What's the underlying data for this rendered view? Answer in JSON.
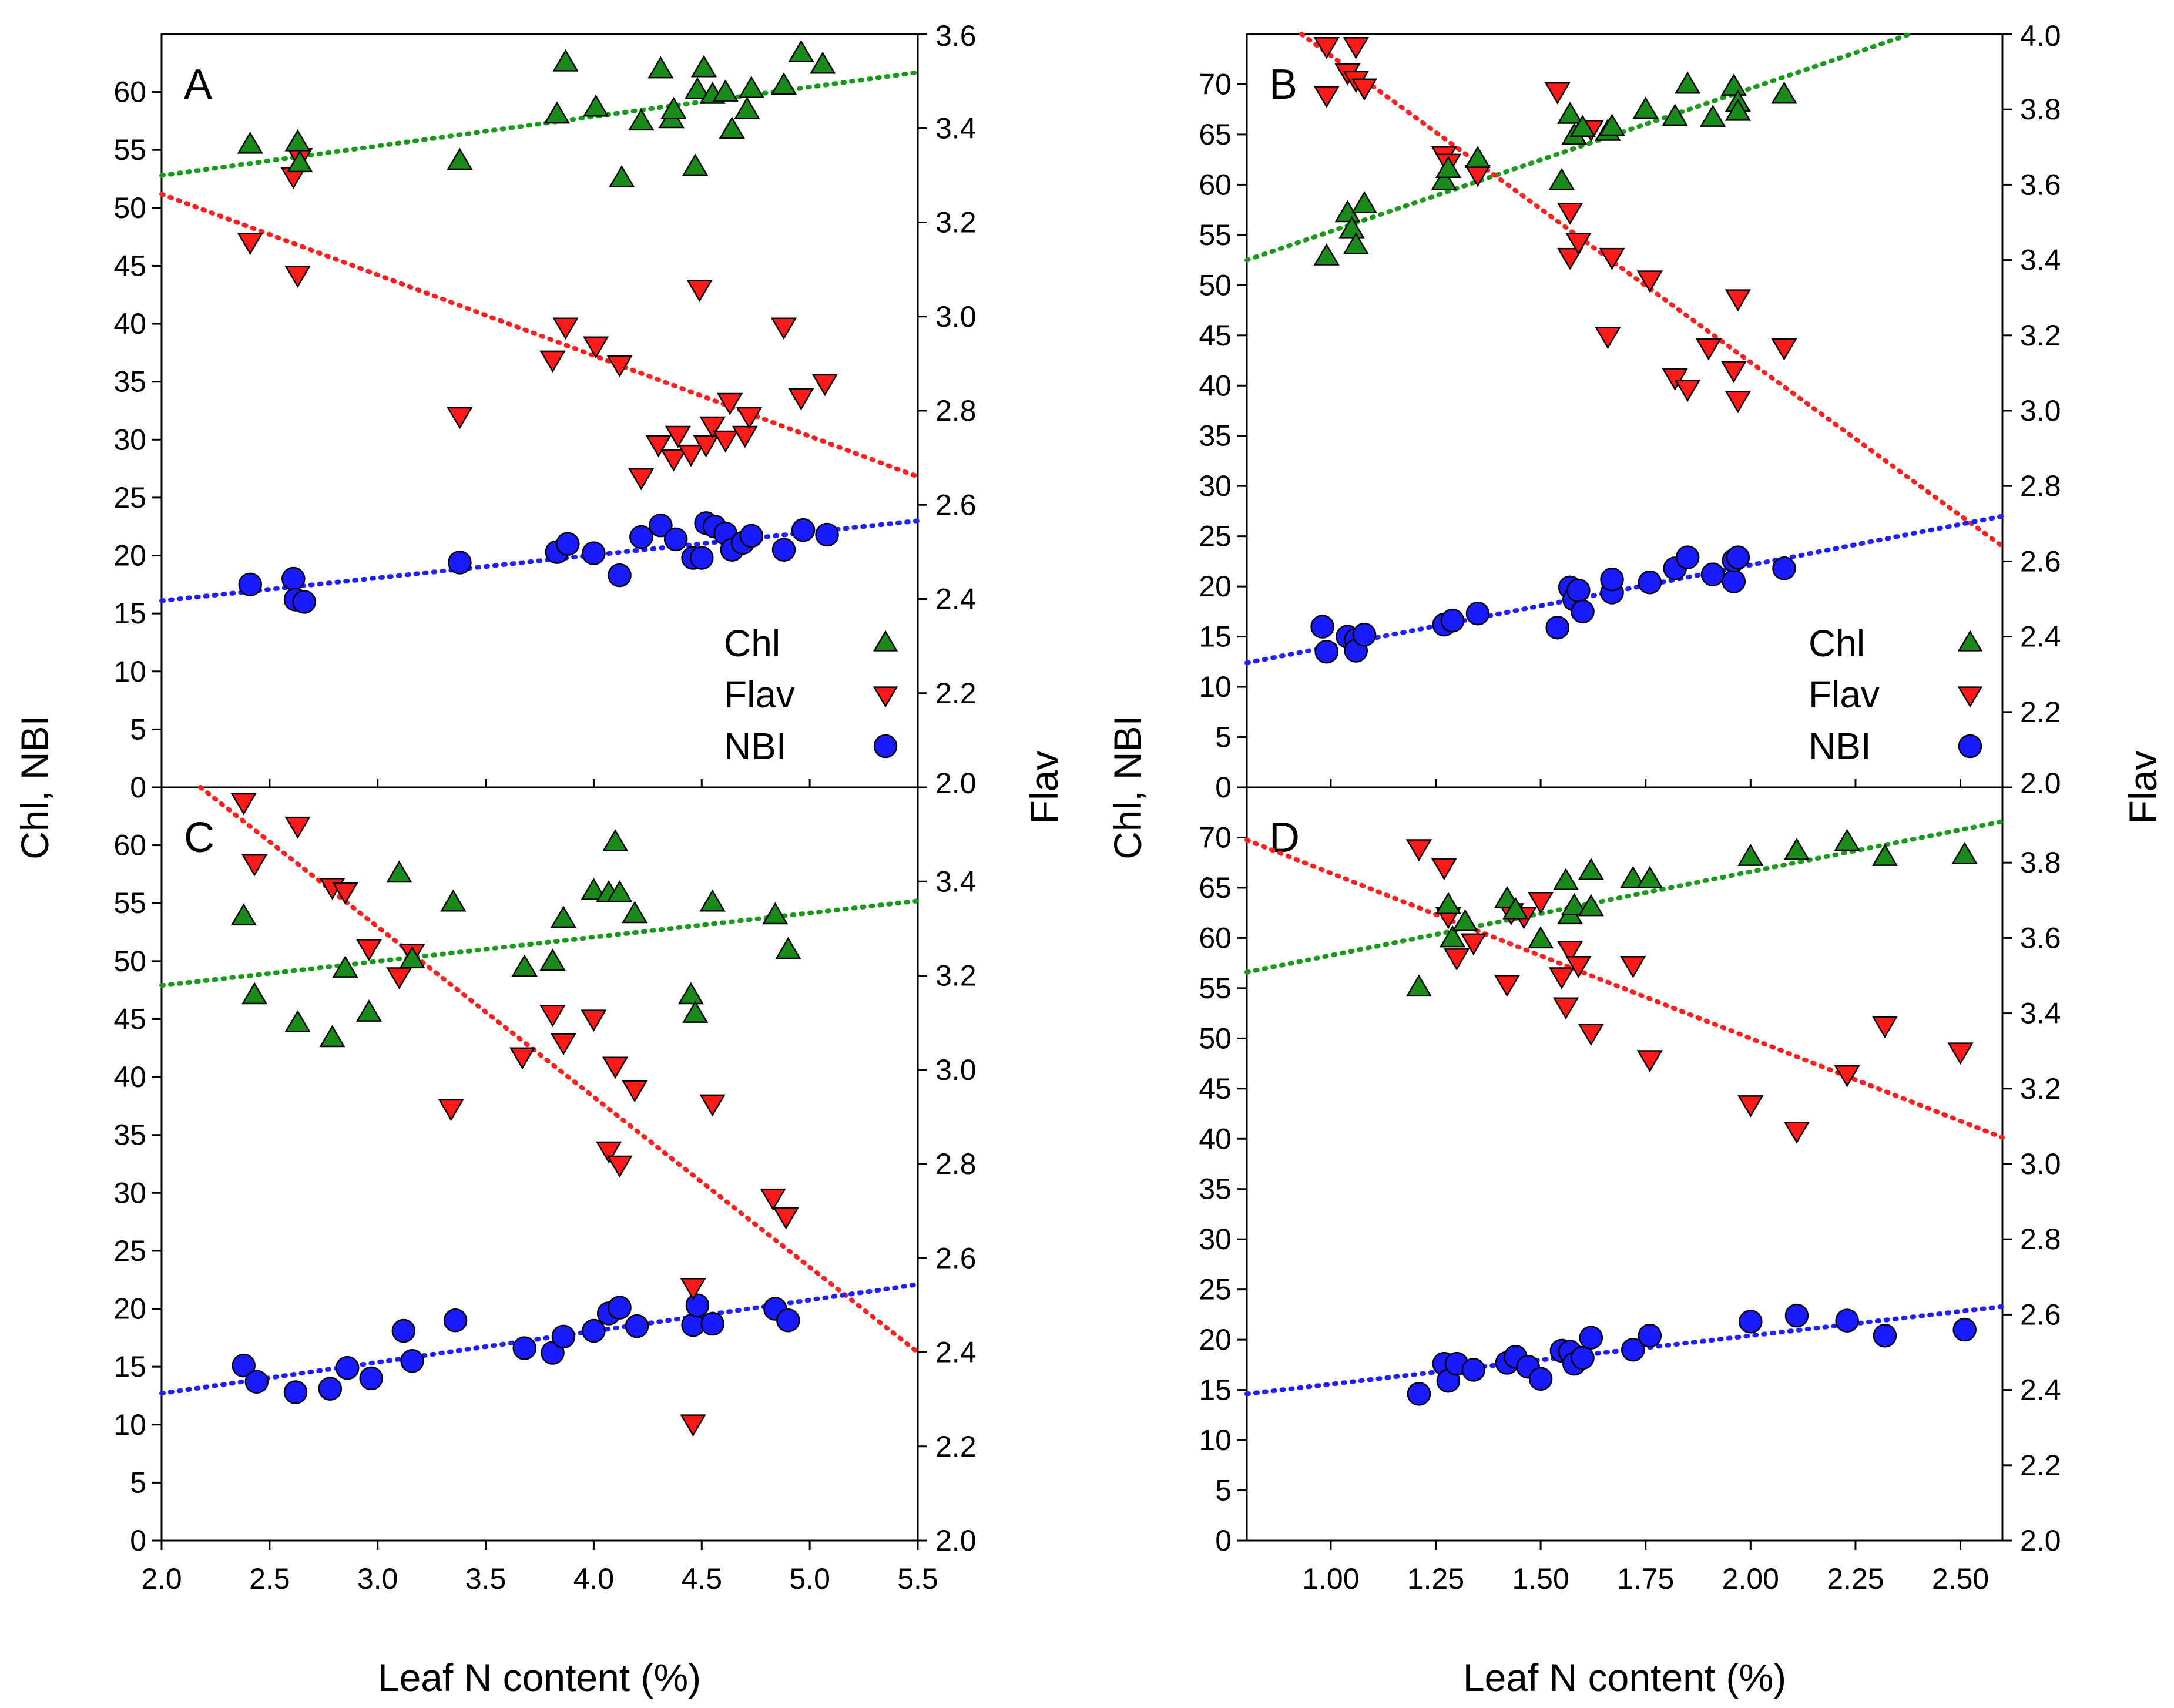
{
  "figure": {
    "shared_xlabel": "Leaf N content (%)",
    "left_ylabel": "Chl, NBI",
    "right_ylabel": "Flav",
    "legend": [
      {
        "label": "Chl",
        "marker": "triangle-up",
        "color": "#1a8a1a"
      },
      {
        "label": "Flav",
        "marker": "triangle-down",
        "color": "#ff1a1a"
      },
      {
        "label": "NBI",
        "marker": "circle",
        "color": "#1a1aff"
      }
    ],
    "colors": {
      "chl": "#1a8a1a",
      "flav": "#ff1a1a",
      "nbi": "#1a1aff",
      "chl_fit": "#1a9a1a",
      "flav_fit": "#ff2020",
      "nbi_fit": "#2020ff"
    }
  },
  "chart_data": [
    {
      "panel": "A",
      "type": "scatter",
      "xlim": [
        2.0,
        5.5
      ],
      "ylim": [
        0,
        65
      ],
      "y2lim": [
        2.0,
        3.6
      ],
      "xticks": [
        "2.0",
        "2.5",
        "3.0",
        "3.5",
        "4.0",
        "4.5",
        "5.0",
        "5.5"
      ],
      "yticks": [
        "0",
        "5",
        "10",
        "15",
        "20",
        "25",
        "30",
        "35",
        "40",
        "45",
        "50",
        "55",
        "60"
      ],
      "y2ticks": [
        "2.0",
        "2.2",
        "2.4",
        "2.6",
        "2.8",
        "3.0",
        "3.2",
        "3.4",
        "3.6"
      ],
      "show_xticks": false,
      "show_y2_max_label": true,
      "legend": true,
      "chl": [
        [
          2.41,
          55.4
        ],
        [
          2.63,
          55.6
        ],
        [
          2.64,
          53.8
        ],
        [
          3.38,
          54.0
        ],
        [
          3.83,
          58.0
        ],
        [
          3.87,
          62.5
        ],
        [
          4.01,
          58.6
        ],
        [
          4.13,
          52.5
        ],
        [
          4.22,
          57.4
        ],
        [
          4.31,
          61.9
        ],
        [
          4.36,
          57.6
        ],
        [
          4.37,
          58.4
        ],
        [
          4.47,
          53.5
        ],
        [
          4.48,
          60.1
        ],
        [
          4.51,
          62.0
        ],
        [
          4.55,
          59.7
        ],
        [
          4.61,
          59.9
        ],
        [
          4.64,
          56.7
        ],
        [
          4.71,
          58.4
        ],
        [
          4.73,
          60.2
        ],
        [
          4.88,
          60.5
        ],
        [
          4.96,
          63.3
        ],
        [
          5.06,
          62.3
        ]
      ],
      "flav": [
        [
          2.41,
          3.16
        ],
        [
          2.61,
          3.3
        ],
        [
          2.63,
          3.09
        ],
        [
          2.64,
          3.34
        ],
        [
          3.38,
          2.79
        ],
        [
          3.81,
          2.91
        ],
        [
          3.87,
          2.98
        ],
        [
          4.01,
          2.94
        ],
        [
          4.12,
          2.9
        ],
        [
          4.22,
          2.66
        ],
        [
          4.3,
          2.73
        ],
        [
          4.37,
          2.7
        ],
        [
          4.39,
          2.75
        ],
        [
          4.45,
          2.71
        ],
        [
          4.49,
          3.06
        ],
        [
          4.52,
          2.73
        ],
        [
          4.55,
          2.77
        ],
        [
          4.61,
          2.74
        ],
        [
          4.63,
          2.82
        ],
        [
          4.7,
          2.75
        ],
        [
          4.72,
          2.79
        ],
        [
          4.88,
          2.98
        ],
        [
          4.96,
          2.83
        ],
        [
          5.07,
          2.86
        ]
      ],
      "nbi": [
        [
          2.41,
          17.5
        ],
        [
          2.61,
          18.0
        ],
        [
          2.62,
          16.2
        ],
        [
          2.66,
          16.0
        ],
        [
          3.38,
          19.4
        ],
        [
          3.83,
          20.3
        ],
        [
          3.88,
          21.0
        ],
        [
          4.0,
          20.2
        ],
        [
          4.12,
          18.3
        ],
        [
          4.22,
          21.6
        ],
        [
          4.31,
          22.6
        ],
        [
          4.38,
          21.4
        ],
        [
          4.46,
          19.8
        ],
        [
          4.5,
          19.8
        ],
        [
          4.52,
          22.8
        ],
        [
          4.56,
          22.5
        ],
        [
          4.61,
          21.9
        ],
        [
          4.64,
          20.5
        ],
        [
          4.69,
          21.1
        ],
        [
          4.73,
          21.7
        ],
        [
          4.88,
          20.5
        ],
        [
          4.97,
          22.2
        ],
        [
          5.08,
          21.8
        ]
      ],
      "fits": {
        "chl": [
          [
            2.0,
            52.8
          ],
          [
            5.5,
            61.7
          ]
        ],
        "flav": [
          [
            2.0,
            3.26
          ],
          [
            5.5,
            2.66
          ]
        ],
        "nbi": [
          [
            2.0,
            16.1
          ],
          [
            5.5,
            23.0
          ]
        ]
      }
    },
    {
      "panel": "B",
      "type": "scatter",
      "xlim": [
        0.8,
        2.6
      ],
      "ylim": [
        0,
        75
      ],
      "y2lim": [
        2.0,
        4.0
      ],
      "xticks": [
        "1.00",
        "1.25",
        "1.50",
        "1.75",
        "2.00",
        "2.25",
        "2.50"
      ],
      "yticks": [
        "0",
        "5",
        "10",
        "15",
        "20",
        "25",
        "30",
        "35",
        "40",
        "45",
        "50",
        "55",
        "60",
        "65",
        "70"
      ],
      "y2ticks": [
        "2.0",
        "2.2",
        "2.4",
        "2.6",
        "2.8",
        "3.0",
        "3.2",
        "3.4",
        "3.6",
        "3.8",
        "4.0"
      ],
      "show_xticks": false,
      "show_y2_max_label": true,
      "legend": true,
      "chl": [
        [
          0.99,
          52.8
        ],
        [
          1.04,
          57.1
        ],
        [
          1.05,
          55.5
        ],
        [
          1.06,
          53.9
        ],
        [
          1.08,
          58.0
        ],
        [
          1.27,
          60.3
        ],
        [
          1.28,
          61.5
        ],
        [
          1.35,
          62.5
        ],
        [
          1.55,
          60.3
        ],
        [
          1.57,
          66.9
        ],
        [
          1.58,
          64.8
        ],
        [
          1.6,
          65.6
        ],
        [
          1.66,
          65.2
        ],
        [
          1.67,
          65.7
        ],
        [
          1.75,
          67.4
        ],
        [
          1.82,
          66.7
        ],
        [
          1.85,
          69.9
        ],
        [
          1.91,
          66.6
        ],
        [
          1.96,
          69.7
        ],
        [
          1.97,
          68.1
        ],
        [
          1.97,
          67.2
        ],
        [
          2.08,
          68.9
        ]
      ],
      "flav": [
        [
          0.99,
          3.97
        ],
        [
          0.99,
          3.84
        ],
        [
          1.04,
          3.9
        ],
        [
          1.06,
          3.88
        ],
        [
          1.06,
          3.97
        ],
        [
          1.08,
          3.86
        ],
        [
          1.27,
          3.68
        ],
        [
          1.28,
          3.66
        ],
        [
          1.35,
          3.63
        ],
        [
          1.54,
          3.85
        ],
        [
          1.57,
          3.53
        ],
        [
          1.57,
          3.41
        ],
        [
          1.59,
          3.45
        ],
        [
          1.62,
          3.75
        ],
        [
          1.66,
          3.2
        ],
        [
          1.67,
          3.41
        ],
        [
          1.76,
          3.35
        ],
        [
          1.82,
          3.09
        ],
        [
          1.85,
          3.06
        ],
        [
          1.9,
          3.17
        ],
        [
          1.96,
          3.11
        ],
        [
          1.97,
          3.3
        ],
        [
          1.97,
          3.03
        ],
        [
          2.08,
          3.17
        ]
      ],
      "nbi": [
        [
          0.98,
          16.0
        ],
        [
          0.99,
          13.5
        ],
        [
          1.04,
          15.0
        ],
        [
          1.06,
          14.7
        ],
        [
          1.06,
          13.6
        ],
        [
          1.08,
          15.2
        ],
        [
          1.27,
          16.2
        ],
        [
          1.29,
          16.6
        ],
        [
          1.35,
          17.3
        ],
        [
          1.54,
          15.9
        ],
        [
          1.57,
          19.9
        ],
        [
          1.58,
          18.7
        ],
        [
          1.59,
          19.6
        ],
        [
          1.6,
          17.5
        ],
        [
          1.67,
          19.4
        ],
        [
          1.67,
          20.7
        ],
        [
          1.76,
          20.4
        ],
        [
          1.82,
          21.8
        ],
        [
          1.85,
          22.9
        ],
        [
          1.91,
          21.2
        ],
        [
          1.96,
          20.5
        ],
        [
          1.96,
          22.6
        ],
        [
          1.97,
          22.9
        ],
        [
          2.08,
          21.8
        ]
      ],
      "fits": {
        "chl": [
          [
            0.8,
            52.5
          ],
          [
            2.38,
            75.0
          ]
        ],
        "flav": [
          [
            0.93,
            4.0
          ],
          [
            2.6,
            2.64
          ]
        ],
        "nbi": [
          [
            0.8,
            12.4
          ],
          [
            2.6,
            27.0
          ]
        ]
      }
    },
    {
      "panel": "C",
      "type": "scatter",
      "xlim": [
        2.0,
        5.5
      ],
      "ylim": [
        0,
        65
      ],
      "y2lim": [
        2.0,
        3.6
      ],
      "xticks": [
        "2.0",
        "2.5",
        "3.0",
        "3.5",
        "4.0",
        "4.5",
        "5.0",
        "5.5"
      ],
      "yticks": [
        "0",
        "5",
        "10",
        "15",
        "20",
        "25",
        "30",
        "35",
        "40",
        "45",
        "50",
        "55",
        "60"
      ],
      "y2ticks": [
        "2.0",
        "2.2",
        "2.4",
        "2.6",
        "2.8",
        "3.0",
        "3.2",
        "3.4"
      ],
      "show_xticks": true,
      "show_y2_max_label": false,
      "legend": false,
      "chl": [
        [
          2.38,
          53.8
        ],
        [
          2.43,
          47.0
        ],
        [
          2.63,
          44.6
        ],
        [
          2.79,
          43.3
        ],
        [
          2.85,
          49.3
        ],
        [
          2.96,
          45.5
        ],
        [
          3.1,
          57.5
        ],
        [
          3.16,
          50.1
        ],
        [
          3.35,
          55.0
        ],
        [
          3.68,
          49.4
        ],
        [
          3.81,
          49.9
        ],
        [
          3.86,
          53.6
        ],
        [
          4.0,
          56.0
        ],
        [
          4.07,
          55.8
        ],
        [
          4.12,
          55.8
        ],
        [
          4.1,
          60.2
        ],
        [
          4.19,
          54.0
        ],
        [
          4.45,
          47.0
        ],
        [
          4.47,
          45.4
        ],
        [
          4.55,
          55.0
        ],
        [
          4.84,
          53.9
        ],
        [
          4.9,
          50.9
        ]
      ],
      "flav": [
        [
          2.38,
          3.57
        ],
        [
          2.43,
          3.44
        ],
        [
          2.63,
          3.52
        ],
        [
          2.79,
          3.39
        ],
        [
          2.85,
          3.38
        ],
        [
          2.96,
          3.26
        ],
        [
          3.1,
          3.2
        ],
        [
          3.16,
          3.25
        ],
        [
          3.34,
          2.92
        ],
        [
          3.67,
          3.03
        ],
        [
          3.81,
          3.12
        ],
        [
          3.86,
          3.06
        ],
        [
          4.0,
          3.11
        ],
        [
          4.07,
          2.83
        ],
        [
          4.1,
          3.01
        ],
        [
          4.12,
          2.8
        ],
        [
          4.19,
          2.96
        ],
        [
          4.46,
          2.54
        ],
        [
          4.46,
          2.25
        ],
        [
          4.55,
          2.93
        ],
        [
          4.83,
          2.73
        ],
        [
          4.89,
          2.69
        ]
      ],
      "nbi": [
        [
          2.38,
          15.1
        ],
        [
          2.44,
          13.7
        ],
        [
          2.62,
          12.8
        ],
        [
          2.78,
          13.1
        ],
        [
          2.86,
          14.9
        ],
        [
          2.97,
          14.0
        ],
        [
          3.12,
          18.1
        ],
        [
          3.16,
          15.5
        ],
        [
          3.36,
          19.0
        ],
        [
          3.68,
          16.6
        ],
        [
          3.81,
          16.2
        ],
        [
          3.86,
          17.6
        ],
        [
          4.0,
          18.1
        ],
        [
          4.07,
          19.6
        ],
        [
          4.12,
          20.1
        ],
        [
          4.2,
          18.5
        ],
        [
          4.46,
          18.6
        ],
        [
          4.48,
          20.3
        ],
        [
          4.55,
          18.7
        ],
        [
          4.84,
          20.0
        ],
        [
          4.9,
          19.0
        ]
      ],
      "fits": {
        "chl": [
          [
            2.0,
            47.9
          ],
          [
            5.5,
            55.2
          ]
        ],
        "flav": [
          [
            2.18,
            3.6
          ],
          [
            5.5,
            2.4
          ]
        ],
        "nbi": [
          [
            2.0,
            12.7
          ],
          [
            5.5,
            22.1
          ]
        ]
      }
    },
    {
      "panel": "D",
      "type": "scatter",
      "xlim": [
        0.8,
        2.6
      ],
      "ylim": [
        0,
        75
      ],
      "y2lim": [
        2.0,
        4.0
      ],
      "xticks": [
        "1.00",
        "1.25",
        "1.50",
        "1.75",
        "2.00",
        "2.25",
        "2.50"
      ],
      "yticks": [
        "0",
        "5",
        "10",
        "15",
        "20",
        "25",
        "30",
        "35",
        "40",
        "45",
        "50",
        "55",
        "60",
        "65",
        "70"
      ],
      "y2ticks": [
        "2.0",
        "2.2",
        "2.4",
        "2.6",
        "2.8",
        "3.0",
        "3.2",
        "3.4",
        "3.6",
        "3.8"
      ],
      "show_xticks": true,
      "show_y2_max_label": false,
      "legend": false,
      "chl": [
        [
          1.21,
          55.0
        ],
        [
          1.28,
          63.2
        ],
        [
          1.29,
          59.9
        ],
        [
          1.32,
          61.5
        ],
        [
          1.42,
          63.8
        ],
        [
          1.44,
          62.7
        ],
        [
          1.5,
          59.8
        ],
        [
          1.56,
          65.6
        ],
        [
          1.57,
          62.2
        ],
        [
          1.58,
          63.1
        ],
        [
          1.62,
          66.6
        ],
        [
          1.62,
          63.0
        ],
        [
          1.72,
          65.8
        ],
        [
          1.76,
          65.8
        ],
        [
          2.0,
          68.0
        ],
        [
          2.11,
          68.6
        ],
        [
          2.23,
          69.5
        ],
        [
          2.32,
          68.0
        ],
        [
          2.51,
          68.2
        ]
      ],
      "flav": [
        [
          1.21,
          3.84
        ],
        [
          1.27,
          3.79
        ],
        [
          1.28,
          3.66
        ],
        [
          1.3,
          3.55
        ],
        [
          1.34,
          3.59
        ],
        [
          1.42,
          3.48
        ],
        [
          1.43,
          3.67
        ],
        [
          1.46,
          3.66
        ],
        [
          1.5,
          3.7
        ],
        [
          1.55,
          3.5
        ],
        [
          1.56,
          3.42
        ],
        [
          1.57,
          3.57
        ],
        [
          1.59,
          3.53
        ],
        [
          1.62,
          3.35
        ],
        [
          1.72,
          3.53
        ],
        [
          1.76,
          3.28
        ],
        [
          2.0,
          3.16
        ],
        [
          2.11,
          3.09
        ],
        [
          2.23,
          3.24
        ],
        [
          2.32,
          3.37
        ],
        [
          2.5,
          3.3
        ]
      ],
      "nbi": [
        [
          1.21,
          14.6
        ],
        [
          1.27,
          17.6
        ],
        [
          1.28,
          15.9
        ],
        [
          1.3,
          17.6
        ],
        [
          1.34,
          17.0
        ],
        [
          1.42,
          17.7
        ],
        [
          1.44,
          18.3
        ],
        [
          1.47,
          17.3
        ],
        [
          1.5,
          16.1
        ],
        [
          1.55,
          18.9
        ],
        [
          1.57,
          18.8
        ],
        [
          1.58,
          17.6
        ],
        [
          1.6,
          18.2
        ],
        [
          1.62,
          20.2
        ],
        [
          1.72,
          19.0
        ],
        [
          1.76,
          20.4
        ],
        [
          2.0,
          21.8
        ],
        [
          2.11,
          22.4
        ],
        [
          2.23,
          21.9
        ],
        [
          2.32,
          20.4
        ],
        [
          2.51,
          21.0
        ]
      ],
      "fits": {
        "chl": [
          [
            0.8,
            56.6
          ],
          [
            2.6,
            71.6
          ]
        ],
        "flav": [
          [
            0.8,
            3.86
          ],
          [
            2.6,
            3.07
          ]
        ],
        "nbi": [
          [
            0.8,
            14.6
          ],
          [
            2.6,
            23.3
          ]
        ]
      }
    }
  ]
}
